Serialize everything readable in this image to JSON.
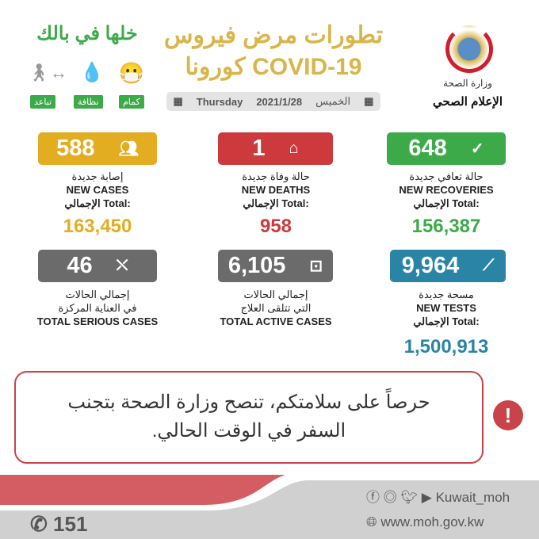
{
  "header": {
    "slogan": "خلها في بالك",
    "tags": [
      "كمام",
      "نظافة",
      "تباعد"
    ],
    "title_line1": "تطورات مرض فيروس",
    "title_line2": "كورونا COVID-19",
    "date_day_ar": "الخميس",
    "date": "2021/1/28",
    "date_day_en": "Thursday",
    "ministry": "وزارة الصحة",
    "department": "الإعلام الصحي"
  },
  "colors": {
    "yellow": "#e3ad22",
    "red": "#cc3a3d",
    "green": "#3daa4a",
    "gray": "#6b6b6b",
    "blue": "#2a84a6",
    "totals_yellow": "#e3ad22",
    "totals_red": "#cc3a3d",
    "totals_green": "#3daa4a",
    "totals_blue": "#2a84a6"
  },
  "stats": {
    "new_cases": {
      "value": "588",
      "label_ar": "إصابة جديدة",
      "label_en": "NEW CASES",
      "total_label": "الإجمالي Total:",
      "total": "163,450"
    },
    "new_deaths": {
      "value": "1",
      "label_ar": "حالة وفاة جديدة",
      "label_en": "NEW DEATHS",
      "total_label": "الإجمالي Total:",
      "total": "958"
    },
    "new_recoveries": {
      "value": "648",
      "label_ar": "حالة تعافي جديدة",
      "label_en": "NEW RECOVERIES",
      "total_label": "الإجمالي Total:",
      "total": "156,387"
    },
    "serious": {
      "value": "46",
      "label_ar1": "إجمالي الحالات",
      "label_ar2": "في العناية المركزة",
      "label_en": "TOTAL SERIOUS CASES"
    },
    "active": {
      "value": "6,105",
      "label_ar1": "إجمالي الحالات",
      "label_ar2": "التي تتلقى العلاج",
      "label_en": "TOTAL ACTIVE CASES"
    },
    "tests": {
      "value": "9,964",
      "label_ar": "مسحة جديدة",
      "label_en": "NEW TESTS",
      "total_label": "الإجمالي Total:",
      "total": "1,500,913"
    }
  },
  "warning": {
    "line1": "حرصاً على سلامتكم، تنصح وزارة الصحة بتجنب",
    "line2": "السفر في الوقت الحالي."
  },
  "footer": {
    "hotline": "151",
    "social": "Kuwait_moh",
    "website": "www.moh.gov.kw"
  }
}
